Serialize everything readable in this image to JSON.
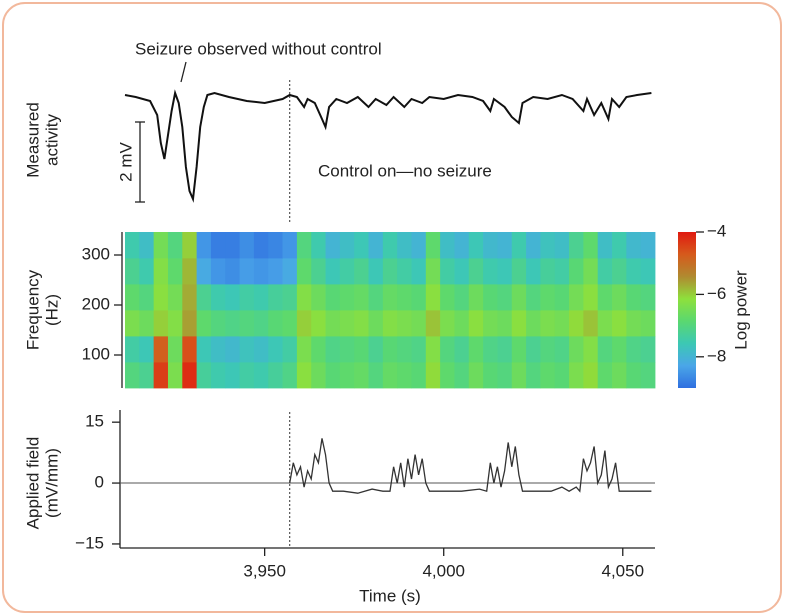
{
  "chart_data": [
    {
      "type": "line",
      "y_label": [
        "Measured",
        "activity"
      ],
      "annotations": [
        "Seizure observed without control",
        "Control on—no seizure"
      ],
      "scale_bar": {
        "value": 2,
        "label": "2 mV"
      },
      "control_onset": 3957,
      "color": "#111111",
      "x": [
        3911,
        3914,
        3918,
        3920,
        3921,
        3922,
        3923,
        3924,
        3925,
        3926,
        3927,
        3928,
        3929,
        3930,
        3931,
        3932,
        3933,
        3934,
        3936,
        3940,
        3945,
        3950,
        3955,
        3957,
        3959,
        3961,
        3962,
        3964,
        3966,
        3967,
        3968,
        3970,
        3973,
        3976,
        3979,
        3981,
        3984,
        3986,
        3989,
        3991,
        3994,
        3996,
        4000,
        4004,
        4008,
        4011,
        4013,
        4014,
        4017,
        4019,
        4021,
        4022,
        4025,
        4029,
        4033,
        4036,
        4039,
        4040,
        4042,
        4044,
        4046,
        4047,
        4049,
        4051,
        4054,
        4058
      ],
      "values": [
        0,
        -0.05,
        -0.15,
        -0.5,
        -1.2,
        -1.6,
        -1.0,
        -0.4,
        0.05,
        -0.2,
        -0.8,
        -1.8,
        -2.4,
        -2.6,
        -1.8,
        -0.8,
        -0.3,
        0,
        0.05,
        -0.05,
        -0.15,
        -0.2,
        -0.1,
        0,
        -0.05,
        -0.3,
        -0.1,
        -0.2,
        -0.6,
        -0.8,
        -0.3,
        -0.1,
        -0.2,
        -0.05,
        -0.3,
        -0.1,
        -0.25,
        -0.05,
        -0.3,
        -0.1,
        -0.2,
        -0.05,
        -0.1,
        0,
        -0.05,
        -0.15,
        -0.4,
        -0.1,
        -0.3,
        -0.55,
        -0.7,
        -0.2,
        -0.05,
        -0.1,
        0,
        -0.1,
        -0.4,
        -0.1,
        -0.5,
        -0.2,
        -0.6,
        -0.1,
        -0.3,
        -0.05,
        0,
        0.05
      ]
    },
    {
      "type": "heatmap",
      "y_label": [
        "Frequency",
        "(Hz)"
      ],
      "ylim": [
        34,
        346
      ],
      "yticks": [
        100,
        200,
        300
      ],
      "x_edges": [
        3911,
        3915,
        3919,
        3923,
        3927,
        3931,
        3935,
        3939,
        3943,
        3947,
        3951,
        3955,
        3959,
        3963,
        3967,
        3971,
        3975,
        3979,
        3983,
        3987,
        3991,
        3995,
        3999,
        4003,
        4007,
        4011,
        4015,
        4019,
        4023,
        4027,
        4031,
        4035,
        4039,
        4043,
        4047,
        4051,
        4055,
        4059
      ],
      "y_edges": [
        34,
        86,
        138,
        190,
        242,
        294,
        346
      ],
      "values": [
        [
          -7,
          -7.2,
          -4.4,
          -6.4,
          -4.2,
          -7.3,
          -7.5,
          -7.6,
          -7.4,
          -7.5,
          -7.3,
          -7.1,
          -6.2,
          -6.6,
          -6.9,
          -6.8,
          -6.7,
          -7,
          -6.7,
          -6.8,
          -6.9,
          -6.1,
          -6.8,
          -7,
          -6.6,
          -6.9,
          -7,
          -6.6,
          -7,
          -6.8,
          -6.9,
          -6.4,
          -6.1,
          -6.8,
          -6.6,
          -6.9,
          -7
        ],
        [
          -7.4,
          -7.6,
          -4.8,
          -6.6,
          -4.6,
          -7.6,
          -7.8,
          -7.9,
          -7.7,
          -7.8,
          -7.6,
          -7.4,
          -6.4,
          -6.8,
          -7.1,
          -7,
          -6.9,
          -7.2,
          -6.9,
          -7,
          -7.1,
          -6.3,
          -7,
          -7.2,
          -6.8,
          -7.1,
          -7.2,
          -6.8,
          -7.2,
          -7,
          -7.1,
          -6.6,
          -6.3,
          -7,
          -6.8,
          -7.1,
          -7.2
        ],
        [
          -6.4,
          -6.6,
          -6,
          -6.3,
          -5.6,
          -6.8,
          -7,
          -7.1,
          -7,
          -7.1,
          -6.9,
          -6.8,
          -6,
          -6.2,
          -6.5,
          -6.4,
          -6.3,
          -6.6,
          -6.3,
          -6.4,
          -6.5,
          -5.9,
          -6.4,
          -6.6,
          -6.2,
          -6.5,
          -6.6,
          -6.2,
          -6.6,
          -6.4,
          -6.5,
          -6.1,
          -5.9,
          -6.4,
          -6.2,
          -6.5,
          -6.6
        ],
        [
          -6.8,
          -7,
          -6.2,
          -6.5,
          -5.7,
          -7.2,
          -7.5,
          -7.6,
          -7.4,
          -7.5,
          -7.3,
          -7.2,
          -6.3,
          -6.6,
          -6.9,
          -6.8,
          -6.7,
          -7,
          -6.7,
          -6.8,
          -6.9,
          -6.2,
          -6.8,
          -7,
          -6.6,
          -6.9,
          -7,
          -6.6,
          -7,
          -6.8,
          -6.9,
          -6.5,
          -6.2,
          -6.8,
          -6.6,
          -6.9,
          -7
        ],
        [
          -7.2,
          -7.5,
          -6.3,
          -6.8,
          -5.8,
          -8.2,
          -8.5,
          -8.6,
          -8.4,
          -8.5,
          -8.4,
          -8.2,
          -6.8,
          -7.2,
          -7.6,
          -7.4,
          -7.2,
          -7.6,
          -7.2,
          -7.4,
          -7.6,
          -6.5,
          -7.4,
          -7.6,
          -7.2,
          -7.5,
          -7.6,
          -7.2,
          -7.6,
          -7.3,
          -7.4,
          -6.9,
          -6.5,
          -7.4,
          -7.2,
          -7.5,
          -7.6
        ],
        [
          -7.5,
          -7.8,
          -6.5,
          -7,
          -6,
          -8.5,
          -8.8,
          -8.8,
          -8.6,
          -8.8,
          -8.7,
          -8.5,
          -7,
          -7.5,
          -8,
          -7.8,
          -7.6,
          -8,
          -7.5,
          -7.8,
          -8,
          -6.8,
          -7.8,
          -8,
          -7.6,
          -7.9,
          -8,
          -7.5,
          -8,
          -7.7,
          -7.8,
          -7.2,
          -6.8,
          -7.8,
          -7.5,
          -7.9,
          -8
        ]
      ],
      "colormap": [
        "#2f6fe0",
        "#4aa6e8",
        "#3cc8b4",
        "#5ad870",
        "#8ee03c",
        "#b08a30",
        "#d65a1c",
        "#e01a10"
      ],
      "colorbar": {
        "label": "Log power",
        "lim": [
          -9,
          -4
        ],
        "ticks": [
          {
            "value": -4,
            "label": "−4"
          },
          {
            "value": -6,
            "label": "−6"
          },
          {
            "value": -8,
            "label": "−8"
          }
        ]
      }
    },
    {
      "type": "line",
      "y_label": [
        "Applied field",
        "(mV/mm)"
      ],
      "x_label": "Time (s)",
      "color": "#333333",
      "xlim": [
        3911,
        4059
      ],
      "xticks": [
        {
          "value": 3950,
          "label": "3,950"
        },
        {
          "value": 4000,
          "label": "4,000"
        },
        {
          "value": 4050,
          "label": "4,050"
        }
      ],
      "ylim": [
        -16,
        18
      ],
      "yticks": [
        15,
        0,
        {
          "value": -15,
          "label": "−15"
        }
      ],
      "x": [
        3957,
        3958,
        3959,
        3960,
        3961,
        3962,
        3963,
        3964,
        3965,
        3966,
        3967,
        3968,
        3969,
        3972,
        3976,
        3980,
        3983,
        3985,
        3986,
        3987,
        3988,
        3989,
        3990,
        3991,
        3992,
        3993,
        3994,
        3995,
        3996,
        4000,
        4005,
        4010,
        4012,
        4013,
        4014,
        4015,
        4016,
        4017,
        4018,
        4019,
        4020,
        4021,
        4022,
        4026,
        4030,
        4033,
        4035,
        4037,
        4038,
        4039,
        4040,
        4041,
        4042,
        4043,
        4044,
        4045,
        4046,
        4047,
        4048,
        4049,
        4052,
        4055,
        4058
      ],
      "values": [
        0,
        5,
        2,
        4,
        -1,
        3,
        1,
        7,
        5,
        11,
        7,
        0,
        -2,
        -2,
        -2.5,
        -1.5,
        -2,
        -2,
        4,
        0,
        5,
        -1,
        6,
        1,
        7,
        2,
        6,
        0,
        -2,
        -2,
        -2,
        -1.5,
        -2,
        5,
        0,
        4,
        -1,
        3,
        10,
        4,
        9,
        2,
        -2,
        -2,
        -2,
        -1,
        -2,
        -1,
        -2,
        6,
        3,
        5,
        9,
        0,
        2,
        8,
        -1,
        1,
        5,
        -2,
        -2,
        -2,
        -2
      ]
    }
  ]
}
